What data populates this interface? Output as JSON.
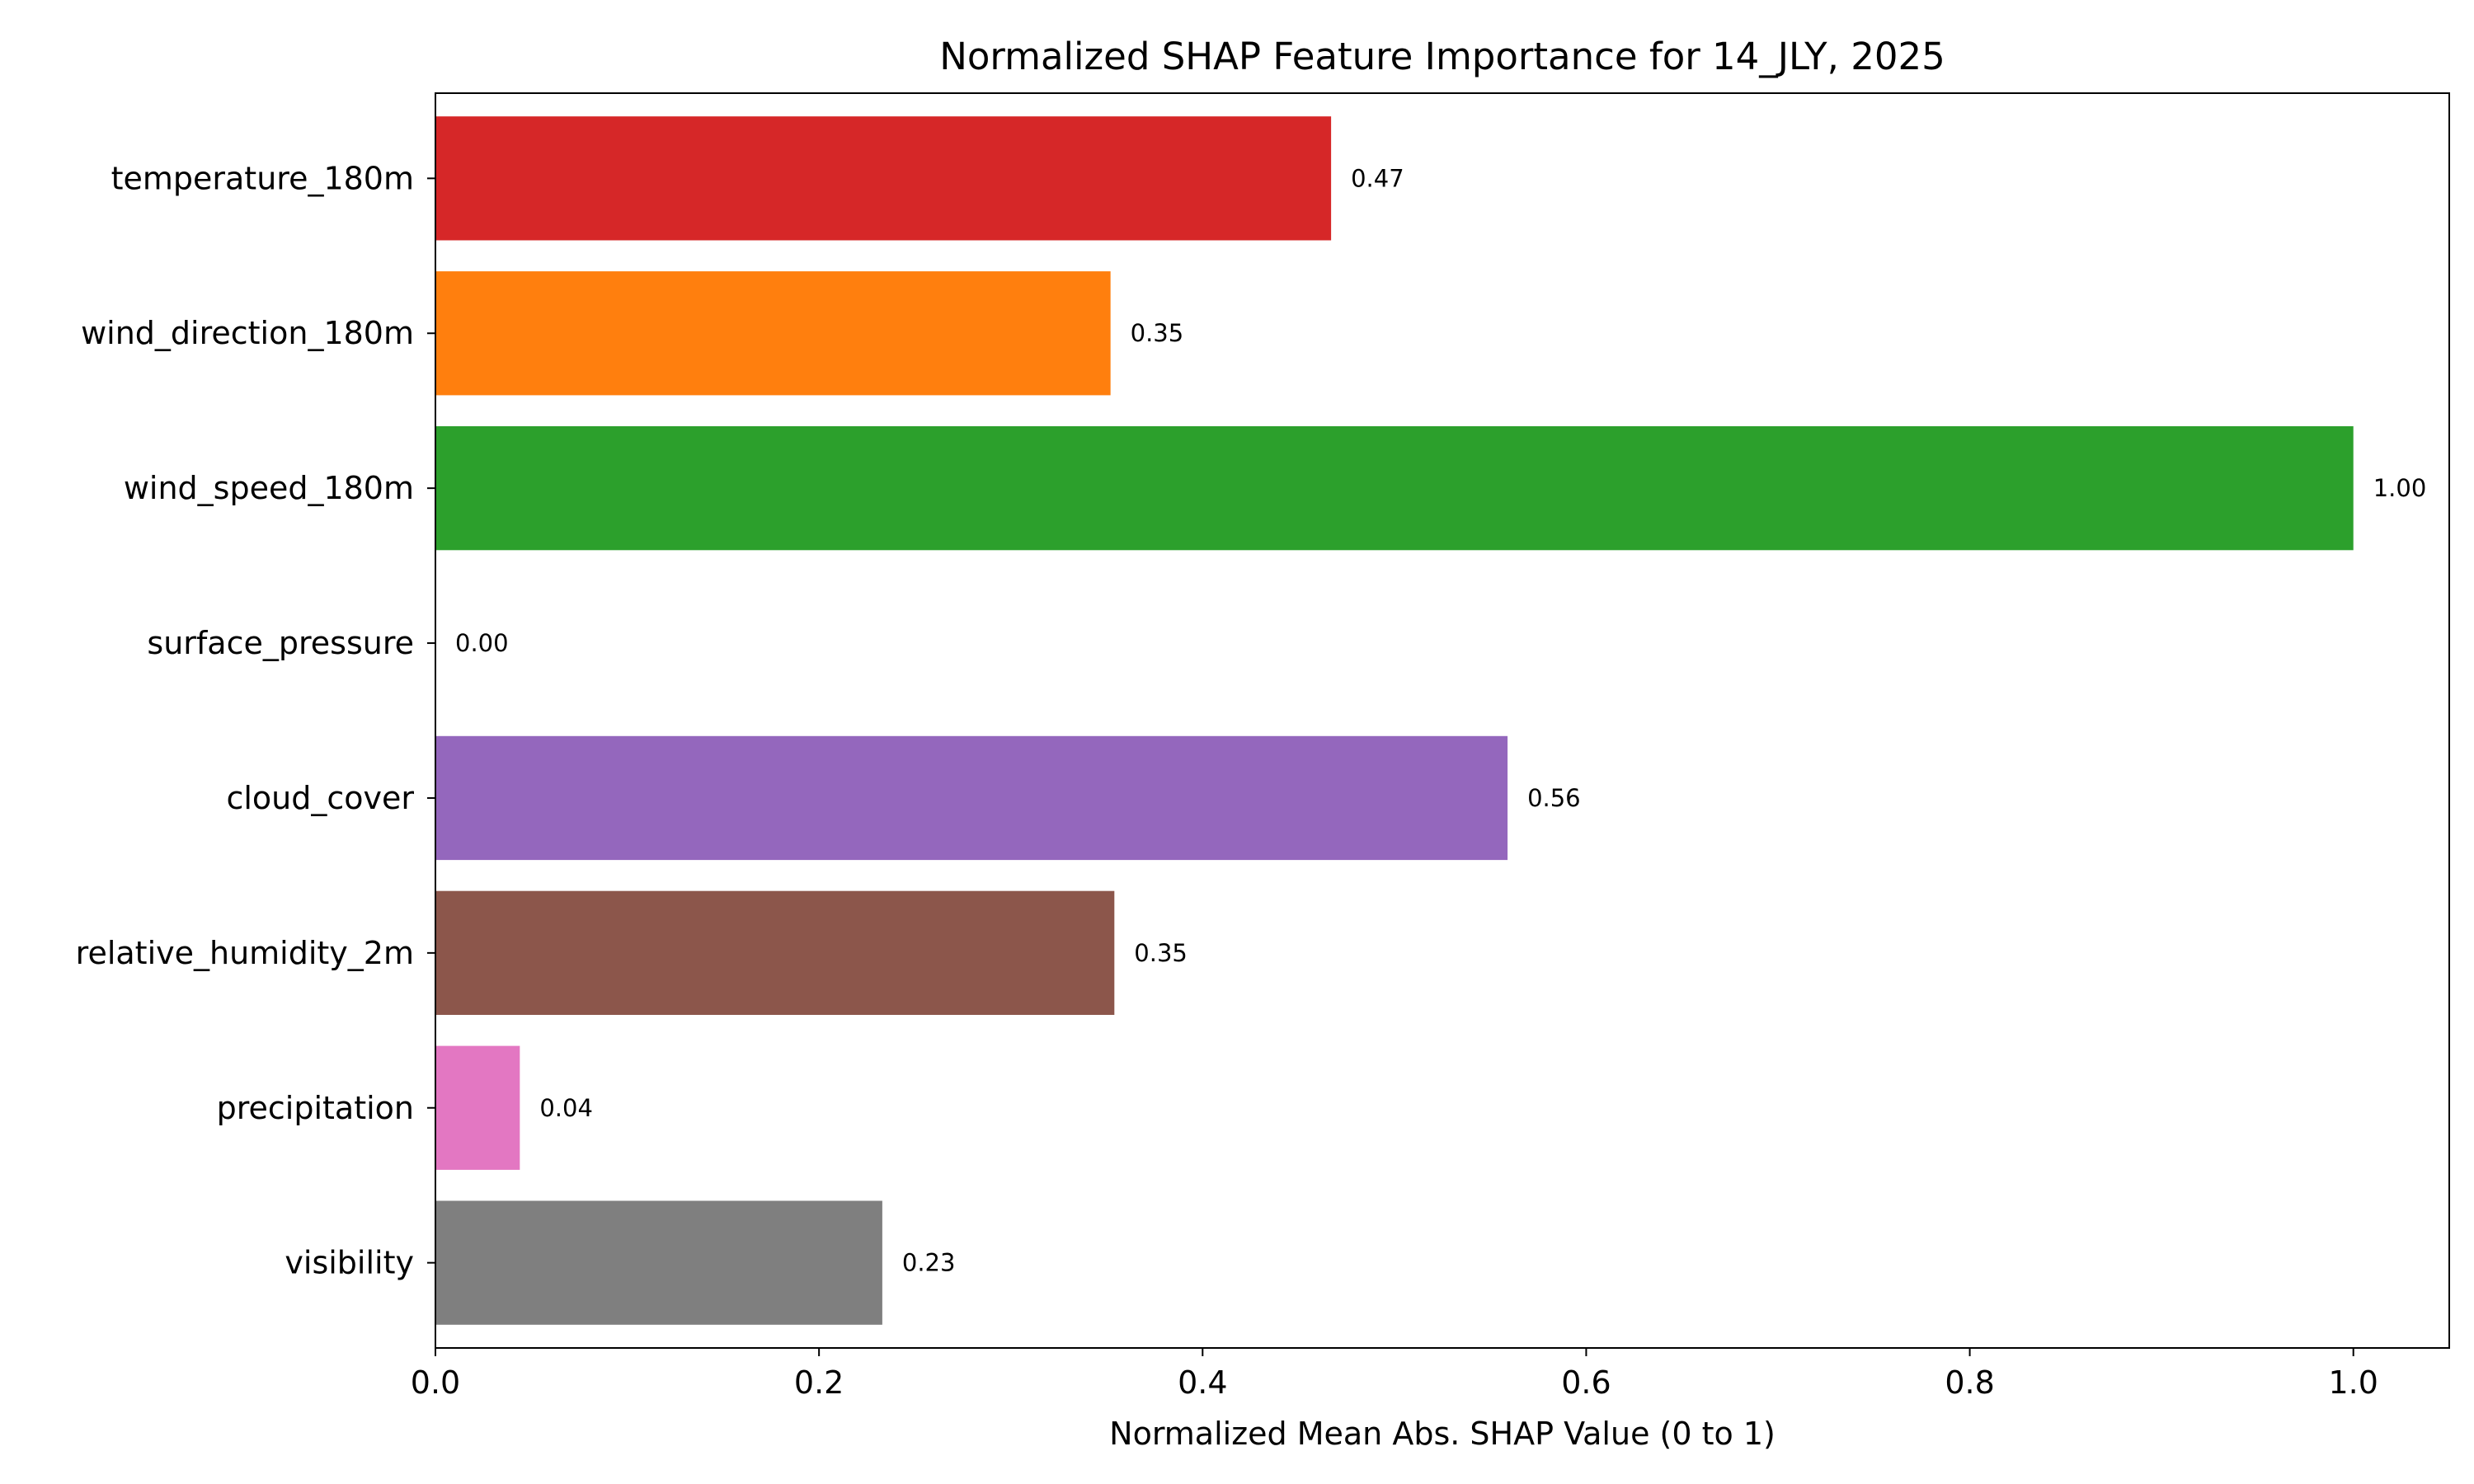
{
  "chart_data": {
    "type": "bar",
    "orientation": "horizontal",
    "title": "Normalized SHAP Feature Importance for 14_JLY, 2025",
    "xlabel": "Normalized Mean Abs. SHAP Value (0 to 1)",
    "ylabel": "",
    "xlim": [
      0,
      1.05
    ],
    "x_ticks": [
      0.0,
      0.2,
      0.4,
      0.6,
      0.8,
      1.0
    ],
    "x_tick_labels": [
      "0.0",
      "0.2",
      "0.4",
      "0.6",
      "0.8",
      "1.0"
    ],
    "grid": false,
    "categories": [
      "temperature_180m",
      "wind_direction_180m",
      "wind_speed_180m",
      "surface_pressure",
      "cloud_cover",
      "relative_humidity_2m",
      "precipitation",
      "visibility"
    ],
    "values": [
      0.467,
      0.352,
      1.0,
      0.0,
      0.559,
      0.354,
      0.044,
      0.233
    ],
    "value_labels": [
      "0.47",
      "0.35",
      "1.00",
      "0.00",
      "0.56",
      "0.35",
      "0.04",
      "0.23"
    ],
    "colors": [
      "#d62728",
      "#ff7f0e",
      "#2ca02c",
      "#1f77b4",
      "#9467bd",
      "#8c564b",
      "#e377c2",
      "#7f7f7f"
    ]
  }
}
